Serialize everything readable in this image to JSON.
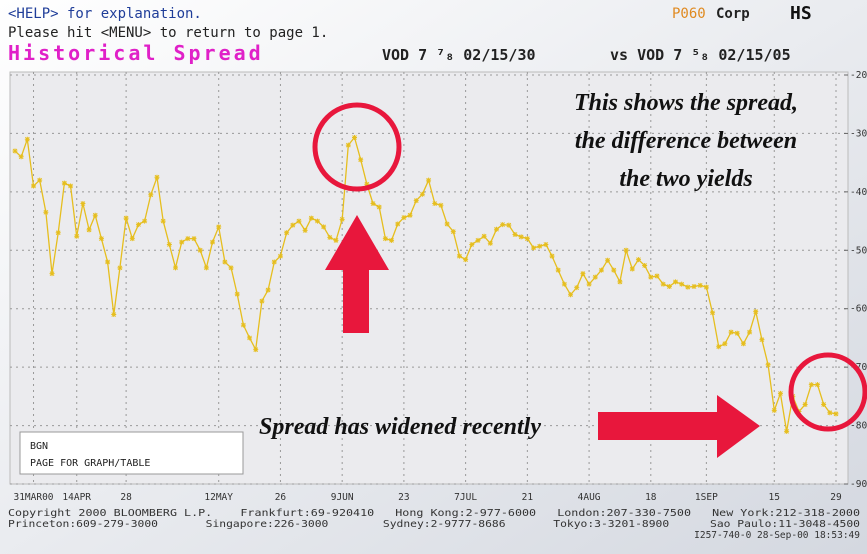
{
  "chart_data": {
    "type": "line",
    "help_line": "<HELP> for explanation.",
    "menu_line": "Please hit <MENU> to return to page 1.",
    "page_code": "P060",
    "market": "Corp",
    "function": "HS",
    "title": "Historical Spread",
    "security_a": "VOD 7 ⁷₈ 02/15/30",
    "security_b": "vs VOD 7 ⁵₈ 02/15/05",
    "annotations": [
      "This shows the spread,",
      "the difference between",
      "the two yields",
      "Spread has widened recently"
    ],
    "menu_box": [
      "BGN",
      "PAGE FOR GRAPH/TABLE"
    ],
    "footer": [
      "Copyright 2000 BLOOMBERG L.P.    Frankfurt:69-920410   Hong Kong:2-977-6000   London:207-330-7500   New York:212-318-2000",
      "Princeton:609-279-3000       Singapore:226-3000        Sydney:2-9777-8686       Tokyo:3-3201-8900      Sao Paulo:11-3048-4500",
      "I257-740-0 28-Sep-00 18:53:49"
    ],
    "categories": [
      null,
      null,
      null,
      "31MAR00",
      null,
      null,
      null,
      null,
      null,
      null,
      "14APR",
      null,
      null,
      null,
      null,
      null,
      null,
      null,
      "28",
      null,
      null,
      null,
      null,
      null,
      null,
      null,
      null,
      null,
      null,
      null,
      null,
      null,
      null,
      "12MAY",
      null,
      null,
      null,
      null,
      null,
      null,
      null,
      null,
      null,
      "26",
      null,
      null,
      null,
      null,
      null,
      null,
      null,
      null,
      null,
      "9JUN",
      null,
      null,
      null,
      null,
      null,
      null,
      null,
      null,
      null,
      "23",
      null,
      null,
      null,
      null,
      null,
      null,
      null,
      null,
      null,
      "7JUL",
      null,
      null,
      null,
      null,
      null,
      null,
      null,
      null,
      null,
      "21",
      null,
      null,
      null,
      null,
      null,
      null,
      null,
      null,
      null,
      "4AUG",
      null,
      null,
      null,
      null,
      null,
      null,
      null,
      null,
      null,
      "18",
      null,
      null,
      null,
      null,
      null,
      null,
      null,
      null,
      "1SEP",
      null,
      null,
      null,
      null,
      null,
      null,
      null,
      null,
      null,
      null,
      "15",
      null,
      null,
      null,
      null,
      null,
      null,
      null,
      null,
      null,
      "29"
    ],
    "values": [
      -33,
      -34,
      -31,
      -39,
      -38,
      -43.5,
      -54,
      -47,
      -38.5,
      -39,
      -47.6,
      -42,
      -46.5,
      -44,
      -48,
      -52,
      -61,
      -53,
      -44.5,
      -48,
      -45.6,
      -45,
      -40.5,
      -37.5,
      -45,
      -49,
      -53,
      -48.6,
      -48,
      -48,
      -50,
      -53,
      -48.6,
      -46,
      -52,
      -53,
      -57.5,
      -62.8,
      -65,
      -67,
      -58.7,
      -56.8,
      -52,
      -51,
      -47,
      -45.7,
      -45,
      -46.6,
      -44.5,
      -45,
      -46,
      -47.8,
      -48.3,
      -44.7,
      -32,
      -30.7,
      -34.5,
      -38.7,
      -42,
      -42.6,
      -48,
      -48.3,
      -45.5,
      -44.4,
      -44,
      -41.5,
      -40.4,
      -38,
      -42,
      -42.3,
      -45.5,
      -46.8,
      -51,
      -51.6,
      -49,
      -48.3,
      -47.6,
      -48.8,
      -46.4,
      -45.6,
      -45.7,
      -47.3,
      -47.7,
      -48,
      -49.6,
      -49.3,
      -49,
      -51,
      -53.4,
      -55.8,
      -57.6,
      -56.4,
      -54,
      -55.8,
      -54.6,
      -53.4,
      -51.7,
      -53.4,
      -55.4,
      -50,
      -53.2,
      -51.6,
      -52.6,
      -54.6,
      -54.4,
      -55.8,
      -56.2,
      -55.4,
      -55.8,
      -56.3,
      -56.2,
      -56,
      -56.3,
      -60.7,
      -66.5,
      -66,
      -64,
      -64.2,
      -66,
      -64,
      -60.5,
      -65.3,
      -69.6,
      -77.4,
      -74.5,
      -81,
      -75,
      -77.6,
      -76.4,
      -73,
      -73,
      -76.4,
      -77.8,
      -78
    ],
    "color": "#e6be1e",
    "ylim": [
      -90,
      -20
    ],
    "yticks": [
      -90,
      -80,
      -70,
      -60,
      -50,
      -40,
      -30,
      -20
    ],
    "grid": true
  }
}
